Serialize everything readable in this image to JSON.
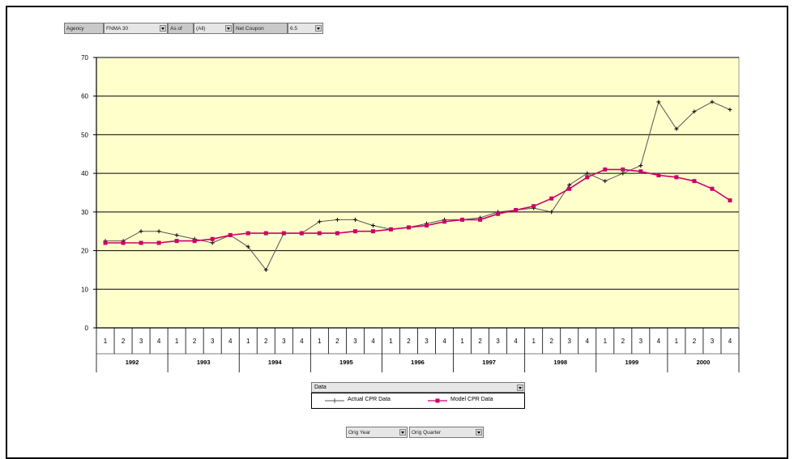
{
  "pivot_fields": {
    "agency_label": "Agency",
    "agency_value": "FNMA 30",
    "asof_label": "As of",
    "asof_value": "(All)",
    "netcoupon_label": "Net Coupon",
    "netcoupon_value": "6.5"
  },
  "data_field_label": "Data",
  "row_fields": {
    "orig_year": "Orig Year",
    "orig_quarter": "Orig Quarter"
  },
  "colors": {
    "plot_background": "#ffffcc",
    "actual_series": "#555555",
    "model_series": "#cc0066"
  },
  "chart_data": {
    "type": "line",
    "title": "",
    "xlabel": "",
    "ylabel": "",
    "ylim": [
      0,
      70
    ],
    "yticks": [
      "0",
      "10",
      "20",
      "30",
      "40",
      "50",
      "60",
      "70"
    ],
    "grid": true,
    "legend_position": "bottom",
    "years": [
      "1992",
      "1993",
      "1994",
      "1995",
      "1996",
      "1997",
      "1998",
      "1999",
      "2000"
    ],
    "quarters": [
      "1",
      "2",
      "3",
      "4"
    ],
    "categories": [
      "1992 Q1",
      "1992 Q2",
      "1992 Q3",
      "1992 Q4",
      "1993 Q1",
      "1993 Q2",
      "1993 Q3",
      "1993 Q4",
      "1994 Q1",
      "1994 Q2",
      "1994 Q3",
      "1994 Q4",
      "1995 Q1",
      "1995 Q2",
      "1995 Q3",
      "1995 Q4",
      "1996 Q1",
      "1996 Q2",
      "1996 Q3",
      "1996 Q4",
      "1997 Q1",
      "1997 Q2",
      "1997 Q3",
      "1997 Q4",
      "1998 Q1",
      "1998 Q2",
      "1998 Q3",
      "1998 Q4",
      "1999 Q1",
      "1999 Q2",
      "1999 Q3",
      "1999 Q4",
      "2000 Q1",
      "2000 Q2",
      "2000 Q3",
      "2000 Q4"
    ],
    "series": [
      {
        "name": "Actual CPR Data",
        "marker": "plus",
        "values": [
          22.5,
          22.5,
          25.0,
          25.0,
          24.0,
          23.0,
          22.0,
          24.0,
          21.0,
          15.0,
          24.5,
          24.5,
          27.5,
          28.0,
          28.0,
          26.5,
          25.5,
          26.0,
          27.0,
          28.0,
          28.0,
          28.5,
          30.0,
          30.5,
          31.0,
          30.0,
          37.0,
          40.0,
          38.0,
          40.0,
          42.0,
          58.5,
          51.5,
          56.0,
          58.5,
          56.5
        ]
      },
      {
        "name": "Model CPR Data",
        "marker": "square",
        "values": [
          22.0,
          22.0,
          22.0,
          22.0,
          22.5,
          22.5,
          23.0,
          24.0,
          24.5,
          24.5,
          24.5,
          24.5,
          24.5,
          24.5,
          25.0,
          25.0,
          25.5,
          26.0,
          26.5,
          27.5,
          28.0,
          28.0,
          29.5,
          30.5,
          31.5,
          33.5,
          36.0,
          39.0,
          41.0,
          41.0,
          40.5,
          39.5,
          39.0,
          38.0,
          36.0,
          33.0
        ]
      }
    ]
  }
}
